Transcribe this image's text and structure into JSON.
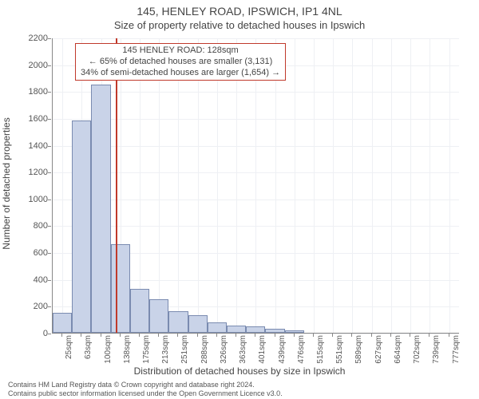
{
  "title_main": "145, HENLEY ROAD, IPSWICH, IP1 4NL",
  "title_sub": "Size of property relative to detached houses in Ipswich",
  "ylabel": "Number of detached properties",
  "xlabel": "Distribution of detached houses by size in Ipswich",
  "chart": {
    "type": "bar",
    "xlim": [
      6.25,
      795.75
    ],
    "ylim": [
      0,
      2200
    ],
    "ytick_step": 200,
    "bin_width": 37.5,
    "bar_color": "#c9d3e8",
    "bar_border_color": "#7a8bb0",
    "grid_color": "#eef0f4",
    "axis_color": "#888888",
    "background_color": "#ffffff",
    "title_fontsize": 14,
    "sub_fontsize": 13,
    "label_fontsize": 12,
    "tick_fontsize": 11,
    "xtick_fontsize": 10,
    "bins": [
      {
        "start": 6.25,
        "label": "25sqm",
        "count": 150
      },
      {
        "start": 43.75,
        "label": "63sqm",
        "count": 1580
      },
      {
        "start": 81.25,
        "label": "100sqm",
        "count": 1850
      },
      {
        "start": 118.75,
        "label": "138sqm",
        "count": 660
      },
      {
        "start": 156.25,
        "label": "175sqm",
        "count": 330
      },
      {
        "start": 193.75,
        "label": "213sqm",
        "count": 250
      },
      {
        "start": 231.25,
        "label": "251sqm",
        "count": 160
      },
      {
        "start": 268.75,
        "label": "288sqm",
        "count": 130
      },
      {
        "start": 306.25,
        "label": "326sqm",
        "count": 80
      },
      {
        "start": 343.75,
        "label": "363sqm",
        "count": 55
      },
      {
        "start": 381.25,
        "label": "401sqm",
        "count": 45
      },
      {
        "start": 418.75,
        "label": "439sqm",
        "count": 30
      },
      {
        "start": 456.25,
        "label": "476sqm",
        "count": 20
      },
      {
        "start": 493.75,
        "label": "515sqm",
        "count": 0
      },
      {
        "start": 531.25,
        "label": "551sqm",
        "count": 0
      },
      {
        "start": 568.75,
        "label": "589sqm",
        "count": 0
      },
      {
        "start": 606.25,
        "label": "627sqm",
        "count": 0
      },
      {
        "start": 643.75,
        "label": "664sqm",
        "count": 0
      },
      {
        "start": 681.25,
        "label": "702sqm",
        "count": 0
      },
      {
        "start": 718.75,
        "label": "739sqm",
        "count": 0
      },
      {
        "start": 756.25,
        "label": "777sqm",
        "count": 0
      }
    ],
    "marker": {
      "value_sqm": 128,
      "color": "#c0392b",
      "line_width": 2
    },
    "annotation": {
      "line1": "145 HENLEY ROAD: 128sqm",
      "line2": "← 65% of detached houses are smaller (3,131)",
      "line3": "34% of semi-detached houses are larger (1,654) →",
      "border_color": "#c0392b",
      "background_color": "#ffffff",
      "fontsize": 11
    }
  },
  "license_line1": "Contains HM Land Registry data © Crown copyright and database right 2024.",
  "license_line2": "Contains public sector information licensed under the Open Government Licence v3.0."
}
